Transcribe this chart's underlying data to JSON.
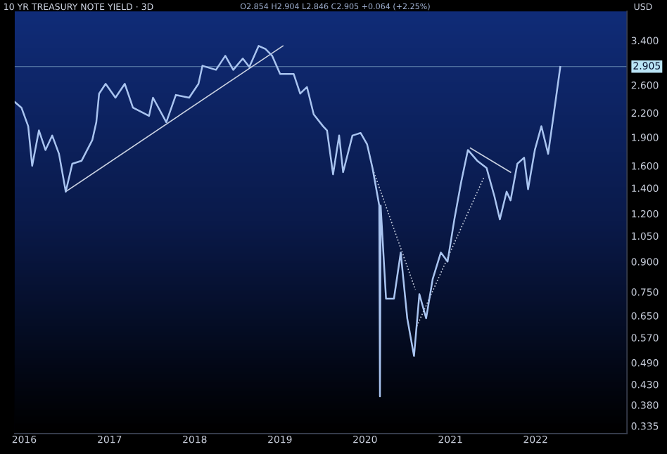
{
  "chart_data": {
    "type": "line",
    "title": "10 YR TREASURY NOTE YIELD · 3D",
    "subtitle": "O2.854 H2.904 L2.846 C2.905 +0.064 (+2.25%)",
    "ylabel": "USD",
    "log": "y",
    "grid": false,
    "marker": "none",
    "xlim": [
      "2015-11-21",
      "2023-01-28"
    ],
    "xticks": [
      {
        "value": "2016-01-01",
        "label": "2016"
      },
      {
        "value": "2017-01-01",
        "label": "2017"
      },
      {
        "value": "2018-01-01",
        "label": "2018"
      },
      {
        "value": "2019-01-01",
        "label": "2019"
      },
      {
        "value": "2020-01-01",
        "label": "2020"
      },
      {
        "value": "2021-01-01",
        "label": "2021"
      },
      {
        "value": "2022-01-01",
        "label": "2022"
      }
    ],
    "ylim": [
      0.32,
      4.05
    ],
    "yticks": [
      {
        "value": 3.4,
        "label": "3.400"
      },
      {
        "value": 2.6,
        "label": "2.600"
      },
      {
        "value": 2.2,
        "label": "2.200"
      },
      {
        "value": 1.9,
        "label": "1.900"
      },
      {
        "value": 1.6,
        "label": "1.600"
      },
      {
        "value": 1.4,
        "label": "1.400"
      },
      {
        "value": 1.2,
        "label": "1.200"
      },
      {
        "value": 1.05,
        "label": "1.050"
      },
      {
        "value": 0.9,
        "label": "0.900"
      },
      {
        "value": 0.75,
        "label": "0.750"
      },
      {
        "value": 0.65,
        "label": "0.650"
      },
      {
        "value": 0.57,
        "label": "0.570"
      },
      {
        "value": 0.49,
        "label": "0.490"
      },
      {
        "value": 0.43,
        "label": "0.430"
      },
      {
        "value": 0.38,
        "label": "0.380"
      },
      {
        "value": 0.335,
        "label": "0.335"
      }
    ],
    "ref_lines": [
      {
        "axis": "y",
        "value": 2.905,
        "label": "2.905",
        "color": "#b9e3f5",
        "line_style": "solid"
      }
    ],
    "series": [
      {
        "color": "#a9c4f0",
        "line_style": "solid",
        "x": [
          "2015-11-21",
          "2015-12-20",
          "2016-01-18",
          "2016-02-04",
          "2016-03-04",
          "2016-04-01",
          "2016-04-30",
          "2016-05-29",
          "2016-06-27",
          "2016-07-25",
          "2016-09-03",
          "2016-10-19",
          "2016-11-05",
          "2016-11-17",
          "2016-12-15",
          "2017-01-26",
          "2017-03-07",
          "2017-04-11",
          "2017-06-19",
          "2017-07-06",
          "2017-09-01",
          "2017-10-12",
          "2017-12-08",
          "2018-01-17",
          "2018-02-03",
          "2018-04-02",
          "2018-05-12",
          "2018-06-15",
          "2018-07-26",
          "2018-08-23",
          "2018-10-02",
          "2018-10-31",
          "2018-11-29",
          "2019-01-02",
          "2019-03-01",
          "2019-03-29",
          "2019-04-27",
          "2019-05-26",
          "2019-07-05",
          "2019-07-22",
          "2019-08-17",
          "2019-09-12",
          "2019-09-29",
          "2019-11-08",
          "2019-12-13",
          "2020-01-10",
          "2020-02-02",
          "2020-03-02",
          "2020-03-05",
          "2020-03-08",
          "2020-03-31",
          "2020-05-04",
          "2020-06-02",
          "2020-06-30",
          "2020-07-29",
          "2020-08-21",
          "2020-09-19",
          "2020-10-17",
          "2020-11-21",
          "2020-12-20",
          "2021-01-18",
          "2021-02-16",
          "2021-03-17",
          "2021-04-26",
          "2021-06-05",
          "2021-07-09",
          "2021-08-01",
          "2021-08-30",
          "2021-09-16",
          "2021-10-15",
          "2021-11-13",
          "2021-11-30",
          "2021-12-29",
          "2022-01-26",
          "2022-02-24",
          "2022-03-19",
          "2022-04-17"
        ],
        "values": [
          2.35,
          2.27,
          2.03,
          1.6,
          1.98,
          1.76,
          1.92,
          1.72,
          1.37,
          1.62,
          1.65,
          1.87,
          2.08,
          2.47,
          2.62,
          2.41,
          2.62,
          2.27,
          2.16,
          2.41,
          2.08,
          2.45,
          2.41,
          2.62,
          2.92,
          2.85,
          3.1,
          2.85,
          3.05,
          2.9,
          3.29,
          3.23,
          3.1,
          2.78,
          2.78,
          2.47,
          2.57,
          2.18,
          2.03,
          1.98,
          1.52,
          1.92,
          1.54,
          1.92,
          1.95,
          1.82,
          1.58,
          1.26,
          0.4,
          1.26,
          0.72,
          0.72,
          0.95,
          0.64,
          0.51,
          0.74,
          0.64,
          0.81,
          0.95,
          0.9,
          1.16,
          1.45,
          1.76,
          1.65,
          1.58,
          1.33,
          1.16,
          1.37,
          1.3,
          1.62,
          1.68,
          1.39,
          1.76,
          2.03,
          1.72,
          2.16,
          2.9
        ]
      },
      {
        "color": "#c8d0e0",
        "line_style": "solid",
        "x": [
          "2016-06-27",
          "2019-01-14"
        ],
        "values": [
          1.37,
          3.29
        ]
      },
      {
        "color": "#c8d0e0",
        "line_style": "dotted",
        "x": [
          "2020-02-08",
          "2020-08-04"
        ],
        "values": [
          1.54,
          0.76
        ]
      },
      {
        "color": "#c8d0e0",
        "line_style": "dotted",
        "x": [
          "2020-08-10",
          "2021-05-24"
        ],
        "values": [
          0.61,
          1.49
        ]
      },
      {
        "color": "#c8d0e0",
        "line_style": "solid",
        "x": [
          "2021-03-28",
          "2021-09-16"
        ],
        "values": [
          1.78,
          1.54
        ]
      }
    ]
  }
}
